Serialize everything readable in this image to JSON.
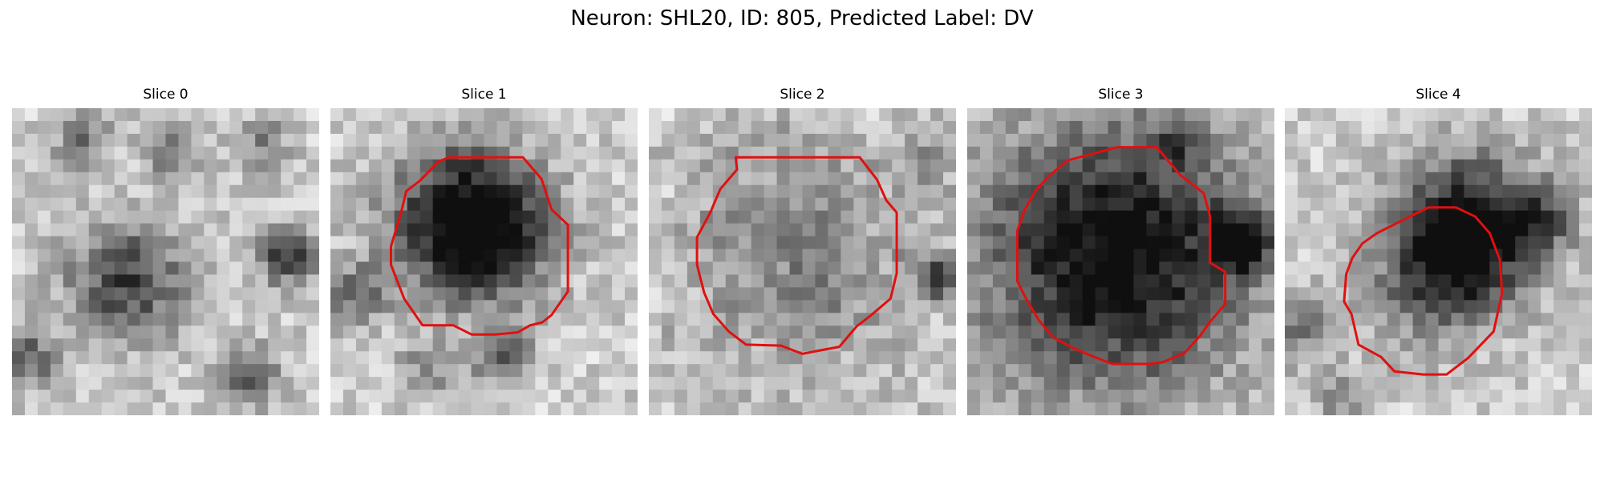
{
  "figure": {
    "title": "Neuron: SHL20, ID: 805, Predicted Label: DV"
  },
  "panels": [
    {
      "title": "Slice 0",
      "has_contour": false
    },
    {
      "title": "Slice 1",
      "has_contour": true
    },
    {
      "title": "Slice 2",
      "has_contour": true
    },
    {
      "title": "Slice 3",
      "has_contour": true
    },
    {
      "title": "Slice 4",
      "has_contour": true
    }
  ],
  "colors": {
    "contour": "#e01010",
    "background": "#ffffff"
  }
}
